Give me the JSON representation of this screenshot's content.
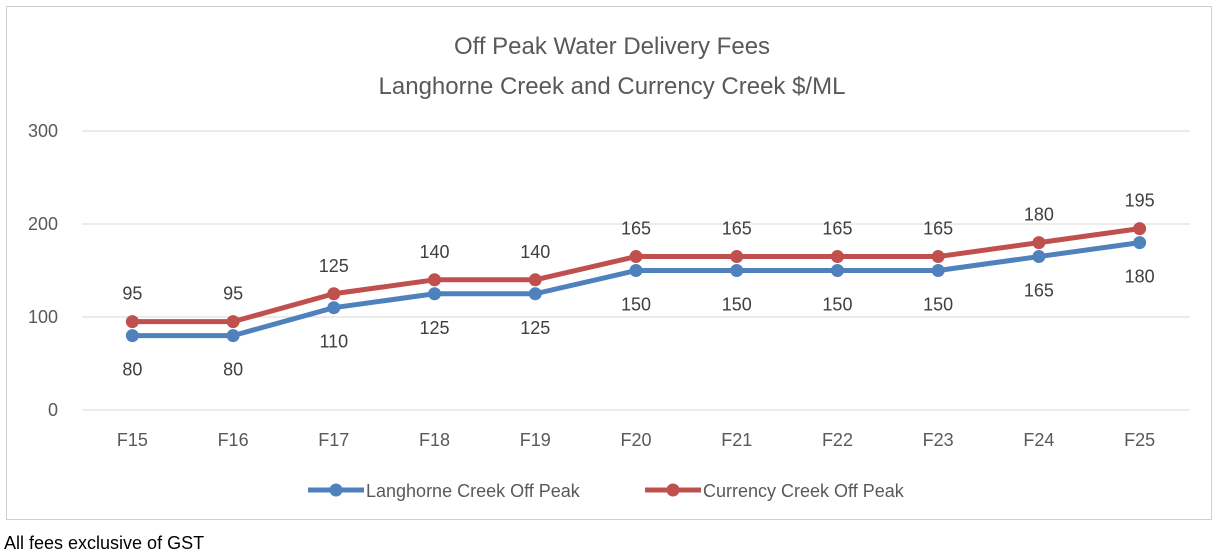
{
  "chart_data": {
    "type": "line",
    "title": [
      "Off Peak Water Delivery Fees",
      "Langhorne Creek and Currency Creek $/ML"
    ],
    "categories": [
      "F15",
      "F16",
      "F17",
      "F18",
      "F19",
      "F20",
      "F21",
      "F22",
      "F23",
      "F24",
      "F25"
    ],
    "ylim": [
      0,
      300
    ],
    "yticks": [
      0,
      100,
      200,
      300
    ],
    "grid": true,
    "legend": "bottom",
    "series": [
      {
        "name": "Langhorne Creek Off Peak",
        "color": "#4f81bd",
        "label_position": "below",
        "values": [
          80,
          80,
          110,
          125,
          125,
          150,
          150,
          150,
          150,
          165,
          180
        ]
      },
      {
        "name": "Currency Creek Off Peak",
        "color": "#c0504d",
        "label_position": "above",
        "values": [
          95,
          95,
          125,
          140,
          140,
          165,
          165,
          165,
          165,
          180,
          195
        ]
      }
    ]
  },
  "footnote": "All fees exclusive of GST"
}
